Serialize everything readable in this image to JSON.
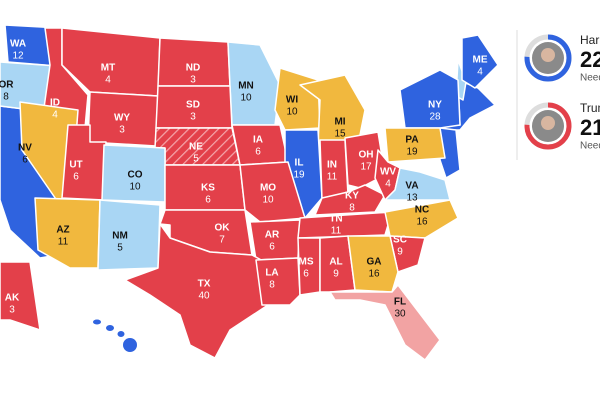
{
  "map": {
    "states": [
      {
        "abbr": "WA",
        "votes": 12,
        "color": "#2f63df"
      },
      {
        "abbr": "OR",
        "votes": 8,
        "color": "#a9d6f4"
      },
      {
        "abbr": "ID",
        "votes": 4,
        "color": "#e3404a"
      },
      {
        "abbr": "MT",
        "votes": 4,
        "color": "#e3404a"
      },
      {
        "abbr": "ND",
        "votes": 3,
        "color": "#e3404a"
      },
      {
        "abbr": "MN",
        "votes": 10,
        "color": "#a9d6f4"
      },
      {
        "abbr": "WI",
        "votes": 10,
        "color": "#f1b83e"
      },
      {
        "abbr": "MI",
        "votes": 15,
        "color": "#f1b83e"
      },
      {
        "abbr": "NY",
        "votes": 28,
        "color": "#2f63df"
      },
      {
        "abbr": "ME",
        "votes": 4,
        "color": "#2f63df"
      },
      {
        "abbr": "NV",
        "votes": 6,
        "color": "#f1b83e"
      },
      {
        "abbr": "WY",
        "votes": 3,
        "color": "#e3404a"
      },
      {
        "abbr": "SD",
        "votes": 3,
        "color": "#e3404a"
      },
      {
        "abbr": "NE",
        "votes": 5,
        "color": "#e3404a",
        "hatched": true
      },
      {
        "abbr": "IA",
        "votes": 6,
        "color": "#e3404a"
      },
      {
        "abbr": "PA",
        "votes": 19,
        "color": "#f1b83e"
      },
      {
        "abbr": "UT",
        "votes": 6,
        "color": "#e3404a"
      },
      {
        "abbr": "CO",
        "votes": 10,
        "color": "#a9d6f4"
      },
      {
        "abbr": "IL",
        "votes": 19,
        "color": "#2f63df"
      },
      {
        "abbr": "IN",
        "votes": 11,
        "color": "#e3404a"
      },
      {
        "abbr": "OH",
        "votes": 17,
        "color": "#e3404a"
      },
      {
        "abbr": "KS",
        "votes": 6,
        "color": "#e3404a"
      },
      {
        "abbr": "MO",
        "votes": 10,
        "color": "#e3404a"
      },
      {
        "abbr": "KY",
        "votes": 8,
        "color": "#e3404a"
      },
      {
        "abbr": "WV",
        "votes": 4,
        "color": "#e3404a"
      },
      {
        "abbr": "VA",
        "votes": 13,
        "color": "#a9d6f4"
      },
      {
        "abbr": "AZ",
        "votes": 11,
        "color": "#f1b83e"
      },
      {
        "abbr": "NM",
        "votes": 5,
        "color": "#a9d6f4"
      },
      {
        "abbr": "OK",
        "votes": 7,
        "color": "#e3404a"
      },
      {
        "abbr": "AR",
        "votes": 6,
        "color": "#e3404a"
      },
      {
        "abbr": "TN",
        "votes": 11,
        "color": "#e3404a"
      },
      {
        "abbr": "NC",
        "votes": 16,
        "color": "#f1b83e"
      },
      {
        "abbr": "SC",
        "votes": 9,
        "color": "#e3404a"
      },
      {
        "abbr": "TX",
        "votes": 40,
        "color": "#e3404a"
      },
      {
        "abbr": "LA",
        "votes": 8,
        "color": "#e3404a"
      },
      {
        "abbr": "MS",
        "votes": 6,
        "color": "#e3404a"
      },
      {
        "abbr": "AL",
        "votes": 9,
        "color": "#e3404a"
      },
      {
        "abbr": "GA",
        "votes": 16,
        "color": "#f1b83e"
      },
      {
        "abbr": "AK",
        "votes": 3,
        "color": "#e3404a"
      },
      {
        "abbr": "FL",
        "votes": 30,
        "color": "#f2a3a3"
      }
    ]
  },
  "candidates": [
    {
      "name": "Harr",
      "votes": 22,
      "note": "Need",
      "color": "#2f63df"
    },
    {
      "name": "Trum",
      "votes": 21,
      "note": "Need",
      "color": "#e3404a"
    }
  ]
}
